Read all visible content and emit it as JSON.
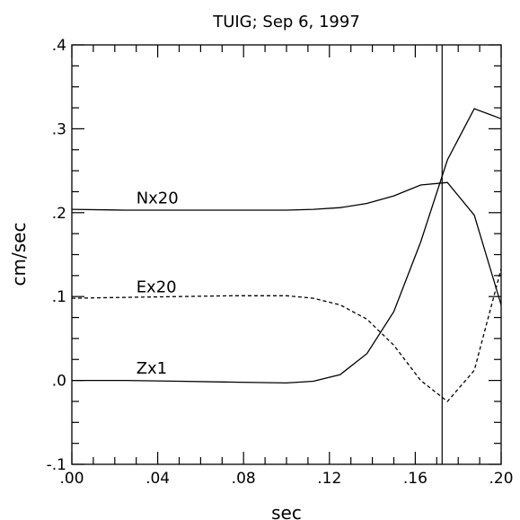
{
  "chart_data": {
    "type": "line",
    "title": "TUIG; Sep 6, 1997",
    "xlabel": "sec",
    "ylabel": "cm/sec",
    "xlim": [
      0.0,
      0.2
    ],
    "ylim": [
      -0.1,
      0.4
    ],
    "x_ticks": [
      0.0,
      0.04,
      0.08,
      0.12,
      0.16,
      0.2
    ],
    "x_tick_labels": [
      ".00",
      ".04",
      ".08",
      ".12",
      ".16",
      ".20"
    ],
    "y_ticks": [
      -0.1,
      0.0,
      0.1,
      0.2,
      0.3,
      0.4
    ],
    "y_tick_labels": [
      "-.1",
      ".0",
      ".1",
      ".2",
      ".3",
      ".4"
    ],
    "grid": false,
    "vertical_marker_x": 0.1725,
    "series": [
      {
        "name": "Nx20",
        "style": "solid",
        "x": [
          0.0,
          0.025,
          0.05,
          0.075,
          0.1,
          0.1125,
          0.125,
          0.1375,
          0.15,
          0.1625,
          0.175,
          0.1875,
          0.2
        ],
        "y": [
          0.204,
          0.203,
          0.203,
          0.203,
          0.203,
          0.204,
          0.206,
          0.211,
          0.22,
          0.233,
          0.236,
          0.197,
          0.09
        ]
      },
      {
        "name": "Ex20",
        "style": "dashed",
        "x": [
          0.0,
          0.025,
          0.05,
          0.075,
          0.1,
          0.1125,
          0.125,
          0.1375,
          0.15,
          0.1625,
          0.175,
          0.1875,
          0.2
        ],
        "y": [
          0.098,
          0.099,
          0.1,
          0.101,
          0.101,
          0.098,
          0.09,
          0.073,
          0.042,
          0.0,
          -0.025,
          0.012,
          0.133
        ]
      },
      {
        "name": "Zx1",
        "style": "solid",
        "x": [
          0.0,
          0.025,
          0.05,
          0.075,
          0.1,
          0.1125,
          0.125,
          0.1375,
          0.15,
          0.1625,
          0.175,
          0.1875,
          0.2
        ],
        "y": [
          0.0,
          0.0,
          -0.001,
          -0.002,
          -0.003,
          -0.001,
          0.007,
          0.032,
          0.082,
          0.165,
          0.263,
          0.324,
          0.312
        ]
      }
    ],
    "series_labels": [
      {
        "text": "Nx20",
        "x": 0.03,
        "y": 0.211
      },
      {
        "text": "Ex20",
        "x": 0.03,
        "y": 0.105
      },
      {
        "text": "Zx1",
        "x": 0.03,
        "y": 0.008
      }
    ]
  }
}
